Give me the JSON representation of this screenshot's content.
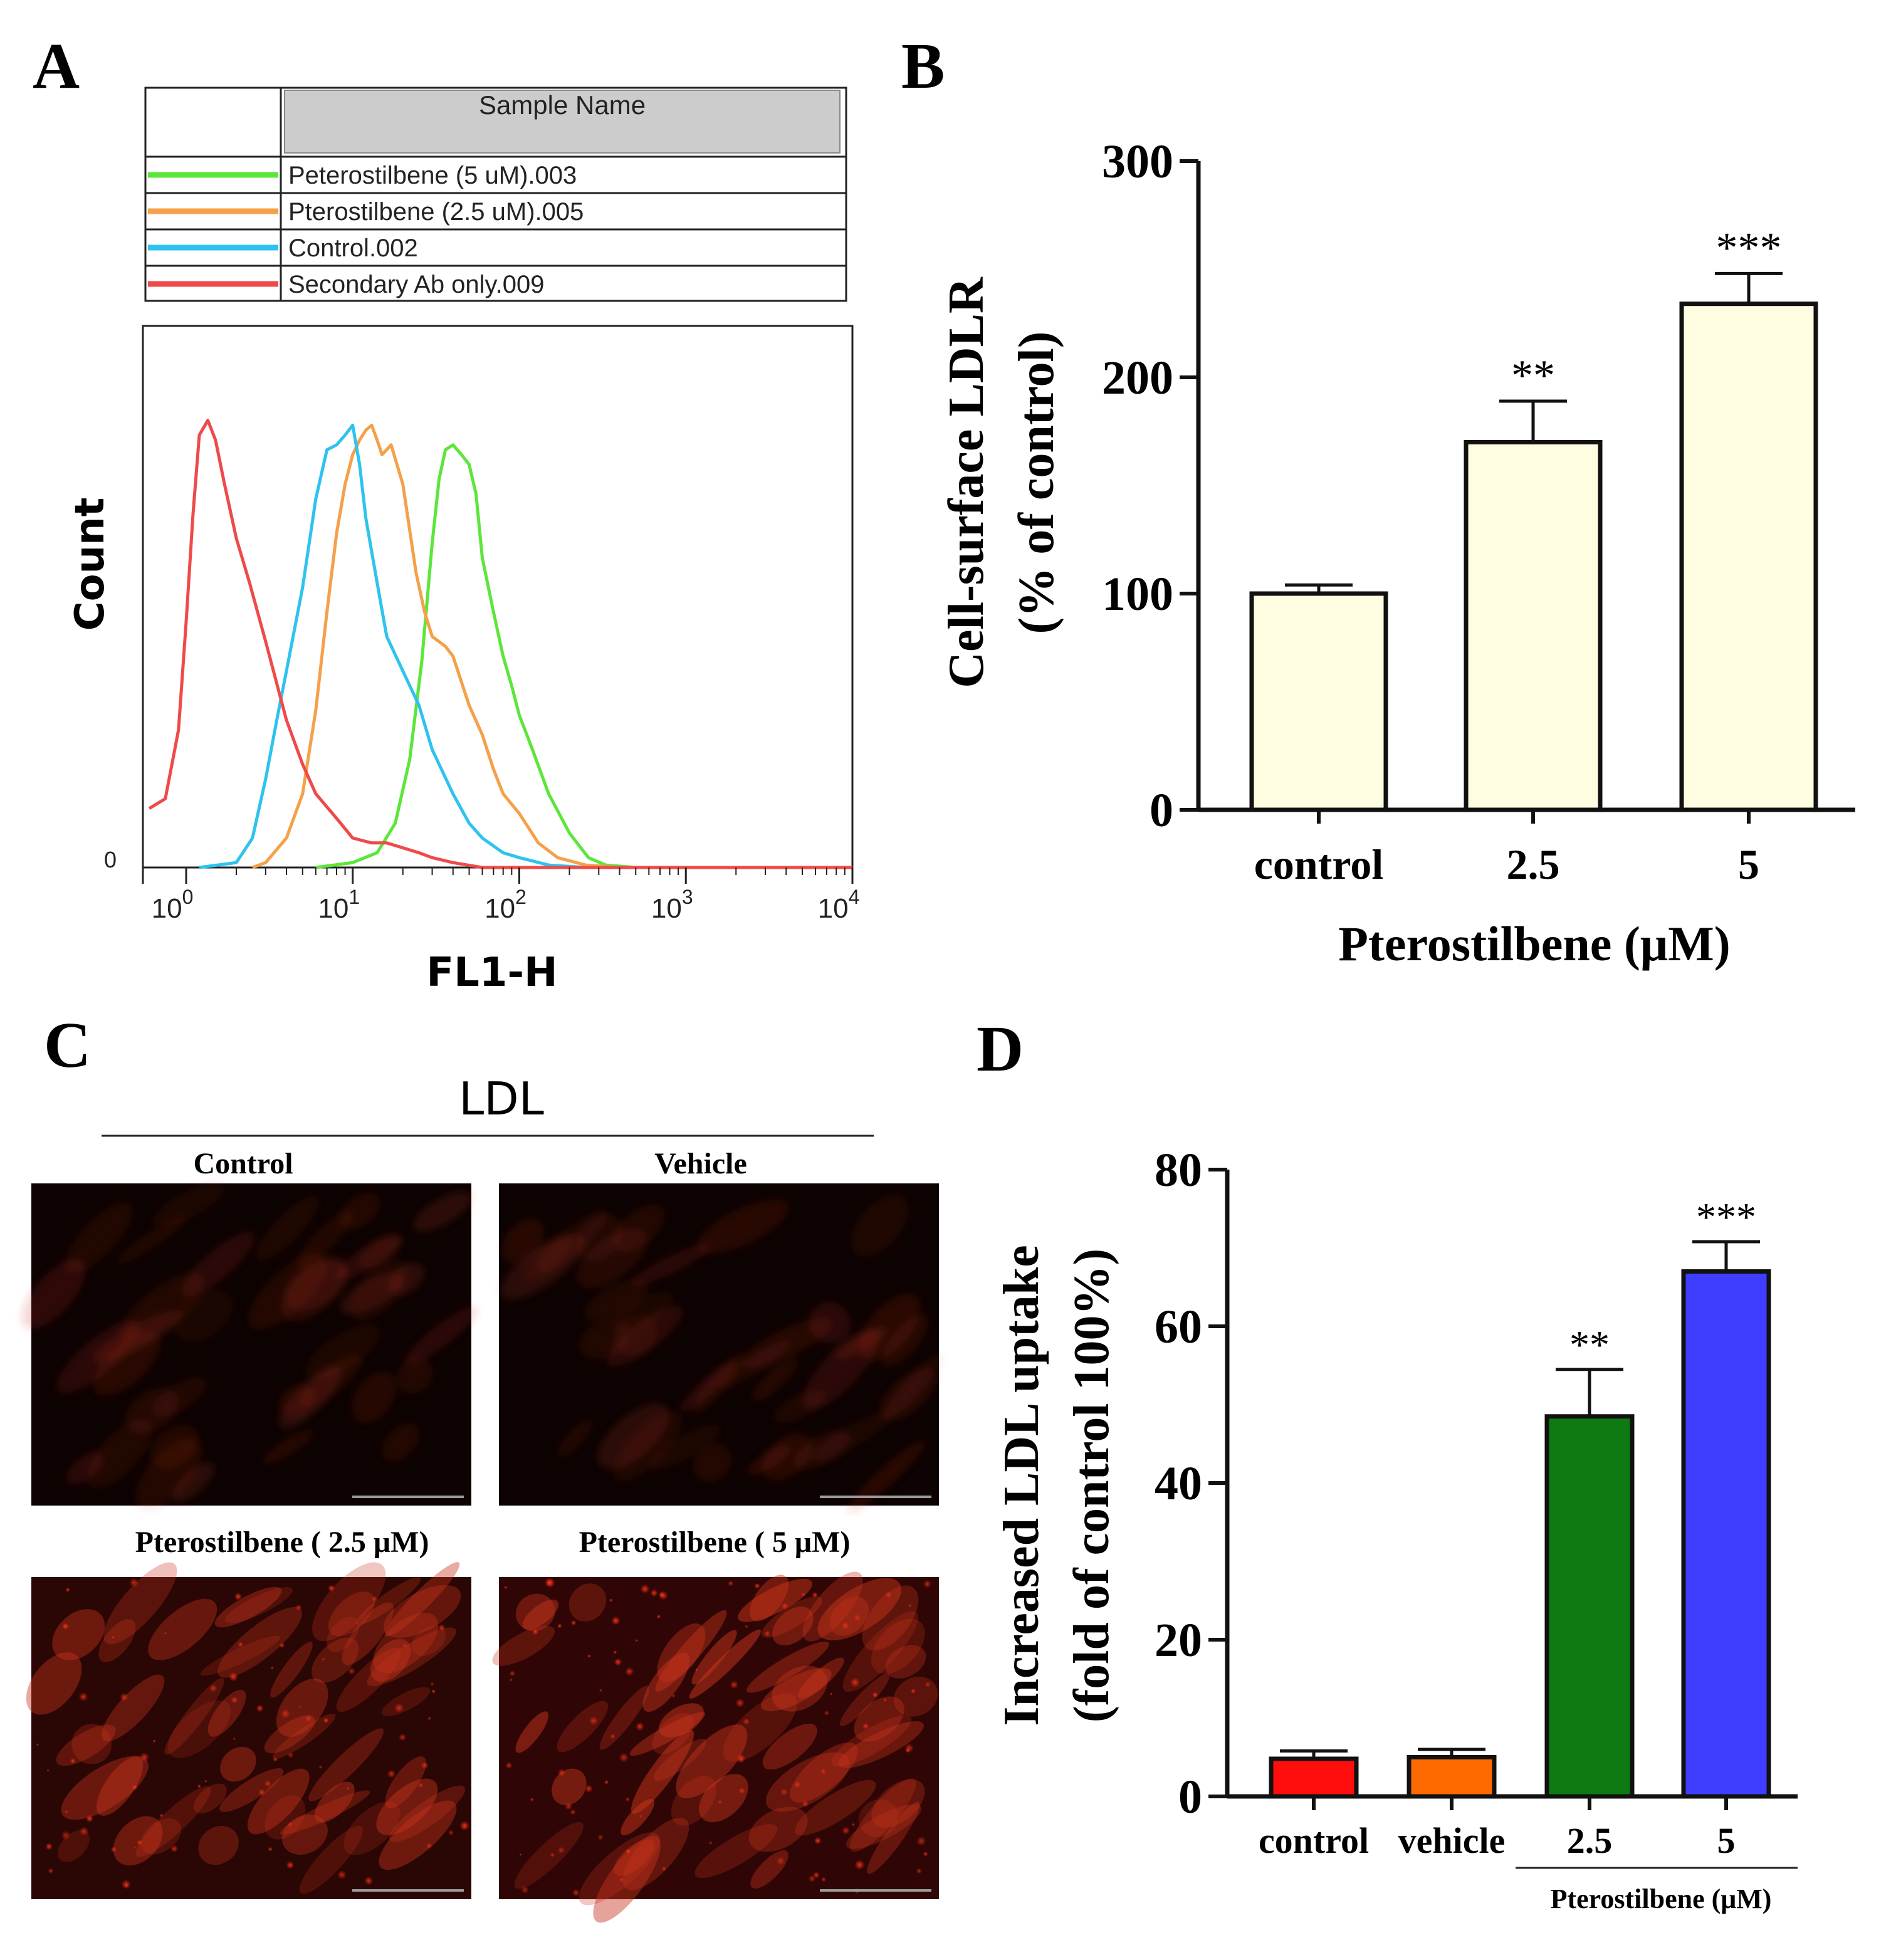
{
  "panel_labels": {
    "a": "A",
    "b": "B",
    "c": "C",
    "d": "D"
  },
  "colors": {
    "green": "#5ce63a",
    "orange": "#f5a04a",
    "cyan": "#2ec3ef",
    "red": "#ef4a4a",
    "bar_b": "#fefde2",
    "d_control": "#ff0d0d",
    "d_vehicle": "#ff6a00",
    "d_25": "#0e7a12",
    "d_5": "#3f3dff",
    "legend_header": "#cccccc"
  },
  "chart_data": [
    {
      "panel": "A",
      "type": "line",
      "legend_header": "Sample Name",
      "series": [
        {
          "name": "Peterostilbene (5 uM).003",
          "color": "green",
          "x": [
            6,
            10,
            14,
            18,
            22,
            26,
            30,
            33,
            36,
            40,
            45,
            50,
            55,
            60,
            70,
            80,
            90,
            100,
            120,
            150,
            200,
            260,
            330,
            500,
            1000,
            10000
          ],
          "y": [
            0,
            1,
            3,
            9,
            22,
            42,
            66,
            79,
            85,
            86,
            84,
            82,
            76,
            63,
            52,
            43,
            37,
            31,
            24,
            15,
            7,
            2,
            0.5,
            0,
            0,
            0
          ]
        },
        {
          "name": "Pterostilbene (2.5 uM).005",
          "color": "orange",
          "x": [
            2.5,
            3,
            4,
            5,
            6,
            7,
            8,
            9,
            10,
            11,
            12,
            13,
            14,
            15,
            17,
            20,
            24,
            27,
            30,
            36,
            40,
            50,
            60,
            70,
            80,
            100,
            130,
            170,
            250,
            400,
            10000
          ],
          "y": [
            0,
            1,
            6,
            15,
            32,
            52,
            68,
            78,
            84,
            87,
            89,
            90,
            87,
            84,
            86,
            78,
            60,
            52,
            47,
            45,
            43,
            33,
            27,
            20,
            15,
            11,
            5,
            2,
            0.5,
            0,
            0
          ]
        },
        {
          "name": "Control.002",
          "color": "cyan",
          "x": [
            1.2,
            2,
            2.5,
            3,
            3.5,
            4,
            5,
            6,
            7,
            8,
            9,
            10,
            11,
            12,
            14,
            16,
            20,
            25,
            30,
            40,
            50,
            60,
            80,
            100,
            150,
            250,
            10000
          ],
          "y": [
            0,
            1,
            6,
            18,
            30,
            40,
            57,
            75,
            85,
            86,
            88,
            90,
            82,
            71,
            58,
            47,
            40,
            33,
            24,
            15,
            9,
            6,
            3,
            2,
            0.5,
            0,
            0
          ]
        },
        {
          "name": "Secondary Ab only.009",
          "color": "red",
          "x": [
            0.6,
            0.75,
            0.9,
            1,
            1.1,
            1.2,
            1.35,
            1.5,
            1.7,
            2,
            2.4,
            3,
            4,
            5,
            6,
            8,
            10,
            13,
            16,
            20,
            25,
            30,
            40,
            60,
            100,
            10000
          ],
          "y": [
            12,
            14,
            28,
            50,
            72,
            88,
            91,
            87,
            78,
            67,
            58,
            46,
            30,
            21,
            15,
            10,
            6,
            5,
            5,
            4,
            3,
            2,
            1,
            0,
            0,
            0
          ]
        }
      ],
      "ylabel": "Count",
      "xlabel": "FL1-H",
      "yzero_label": "0",
      "x_ticks": [
        {
          "value": 1,
          "base": "10",
          "exp": "0"
        },
        {
          "value": 10,
          "base": "10",
          "exp": "1"
        },
        {
          "value": 100,
          "base": "10",
          "exp": "2"
        },
        {
          "value": 1000,
          "base": "10",
          "exp": "3"
        },
        {
          "value": 10000,
          "base": "10",
          "exp": "4"
        }
      ],
      "xlim": [
        0.55,
        10000
      ],
      "ylim": [
        0,
        100
      ]
    },
    {
      "panel": "B",
      "type": "bar",
      "categories": [
        "control",
        "2.5",
        "5"
      ],
      "values": [
        100,
        170,
        234
      ],
      "errors": [
        4,
        19,
        14
      ],
      "significance": [
        "",
        "**",
        "***"
      ],
      "ylim": [
        0,
        300
      ],
      "yticks": [
        0,
        100,
        200,
        300
      ],
      "ylabel_line1": "Cell-surface LDLR",
      "ylabel_line2": "(% of control)",
      "xlabel": "Pterostilbene (μM)"
    },
    {
      "panel": "D",
      "type": "bar",
      "categories": [
        "control",
        "vehicle",
        "2.5",
        "5"
      ],
      "values": [
        4.8,
        5.0,
        48.5,
        67.0
      ],
      "errors": [
        1.0,
        1.0,
        6.0,
        3.8
      ],
      "bar_colors": [
        "d_control",
        "d_vehicle",
        "d_25",
        "d_5"
      ],
      "significance": [
        "",
        "",
        "**",
        "***"
      ],
      "ylim": [
        0,
        80
      ],
      "yticks": [
        0,
        20,
        40,
        60,
        80
      ],
      "ylabel_line1": "Increased LDL uptake",
      "ylabel_line2": "(fold of control 100%)",
      "group_label": "Pterostilbene (μM)"
    }
  ],
  "panel_c": {
    "title": "LDL",
    "images": [
      {
        "label": "Control"
      },
      {
        "label": "Vehicle"
      },
      {
        "label": "Pterostilbene ( 2.5 μM)"
      },
      {
        "label": "Pterostilbene ( 5 μM)"
      }
    ]
  }
}
